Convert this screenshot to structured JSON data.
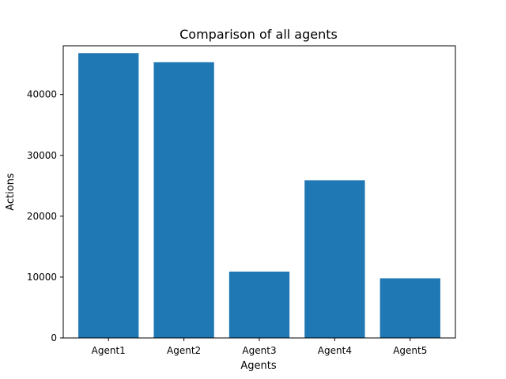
{
  "chart_data": {
    "type": "bar",
    "title": "Comparison of all agents",
    "xlabel": "Agents",
    "ylabel": "Actions",
    "categories": [
      "Agent1",
      "Agent2",
      "Agent3",
      "Agent4",
      "Agent5"
    ],
    "values": [
      46800,
      45300,
      10900,
      25900,
      9800
    ],
    "ylim": [
      0,
      48000
    ],
    "yticks": [
      0,
      10000,
      20000,
      30000,
      40000
    ],
    "ytick_labels": [
      "0",
      "10000",
      "20000",
      "30000",
      "40000"
    ],
    "bar_color": "#1f77b4",
    "grid": false,
    "legend": "none"
  }
}
